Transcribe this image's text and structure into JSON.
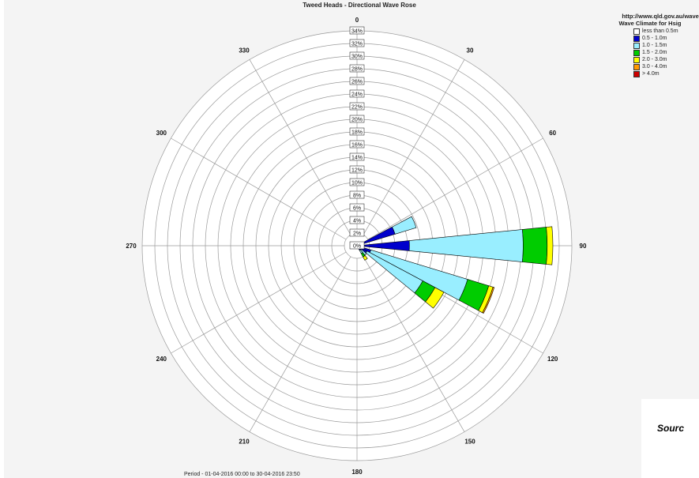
{
  "chart_data": {
    "type": "wave-rose",
    "title": "Tweed Heads - Directional Wave Rose",
    "period": "Period - 01-04-2016  00:00 to 30-04-2016  23:50",
    "radial_max": 34,
    "radial_ticks": [
      "0%",
      "2%",
      "4%",
      "6%",
      "8%",
      "10%",
      "12%",
      "14%",
      "16%",
      "18%",
      "20%",
      "22%",
      "24%",
      "26%",
      "28%",
      "30%",
      "32%",
      "34%"
    ],
    "direction_labels": [
      "0",
      "30",
      "60",
      "90",
      "120",
      "150",
      "180",
      "210",
      "240",
      "270",
      "300",
      "330"
    ],
    "legend": {
      "source_url": "http://www.qld.gov.au/waves",
      "heading": "Wave Climate for Hsig",
      "bins": [
        {
          "label": "less than 0.5m",
          "color": "#ffffff"
        },
        {
          "label": "0.5 - 1.0m",
          "color": "#0000cc"
        },
        {
          "label": "1.0 - 1.5m",
          "color": "#99eeff"
        },
        {
          "label": "1.5 - 2.0m",
          "color": "#00cc00"
        },
        {
          "label": "2.0 - 3.0m",
          "color": "#ffff00"
        },
        {
          "label": "3.0 - 4.0m",
          "color": "#ff9900"
        },
        {
          "label": "> 4.0m",
          "color": "#cc0000"
        }
      ]
    },
    "sectors": [
      {
        "direction": 67.5,
        "stack": [
          0.3,
          6.0,
          3.5,
          0.0,
          0.0,
          0.0,
          0.0
        ]
      },
      {
        "direction": 90,
        "stack": [
          0.3,
          8.0,
          18.0,
          3.8,
          0.9,
          0.0,
          0.0
        ]
      },
      {
        "direction": 112.5,
        "stack": [
          0.3,
          2.0,
          16.0,
          3.5,
          0.7,
          0.2,
          0.0
        ]
      },
      {
        "direction": 123.75,
        "stack": [
          0.3,
          1.5,
          10.0,
          2.2,
          1.6,
          0.0,
          0.0
        ]
      },
      {
        "direction": 135,
        "stack": [
          0.3,
          0.6,
          1.0,
          0.0,
          0.0,
          0.0,
          0.0
        ]
      },
      {
        "direction": 146.25,
        "stack": [
          0.3,
          0.5,
          0.6,
          0.6,
          0.6,
          0.0,
          0.0
        ]
      }
    ]
  },
  "source_note": "Sourc"
}
